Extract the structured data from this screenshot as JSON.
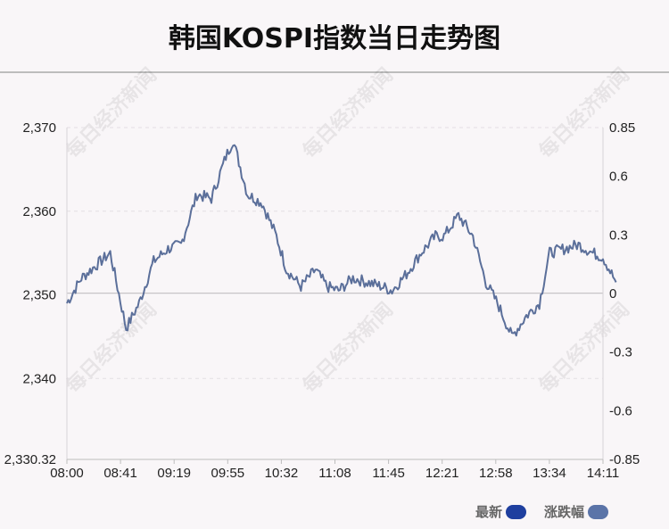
{
  "title": "韩国KOSPI指数当日走势图",
  "legend": [
    {
      "label": "最新",
      "color": "#1f3f9f"
    },
    {
      "label": "涨跌幅",
      "color": "#5b74a8"
    }
  ],
  "watermark": "每日经济新闻",
  "chart_data": {
    "type": "line",
    "title": "韩国KOSPI指数当日走势图",
    "line_color": "#5b6f9a",
    "x_tick_labels": [
      "08:00",
      "08:41",
      "09:19",
      "09:55",
      "10:32",
      "11:08",
      "11:45",
      "12:21",
      "12:58",
      "13:34",
      "14:11"
    ],
    "y_left_tick_labels": [
      "2,370",
      "2,360",
      "2,350",
      "2,340",
      "2,330.32"
    ],
    "y_left_range": [
      2330.32,
      2370.0
    ],
    "y_right_tick_labels": [
      "0.85",
      "0.6",
      "0.3",
      "0",
      "-0.3",
      "-0.6",
      "-0.85"
    ],
    "y_right_range": [
      -0.85,
      0.85
    ],
    "reference_line_value": 2350.2,
    "grid": "horizontal-dashed",
    "x": [
      "08:00",
      "08:10",
      "08:20",
      "08:30",
      "08:41",
      "08:50",
      "09:00",
      "09:10",
      "09:19",
      "09:30",
      "09:40",
      "09:50",
      "09:55",
      "10:05",
      "10:15",
      "10:25",
      "10:32",
      "10:42",
      "10:52",
      "11:00",
      "11:08",
      "11:18",
      "11:28",
      "11:38",
      "11:45",
      "11:55",
      "12:05",
      "12:15",
      "12:21",
      "12:31",
      "12:41",
      "12:50",
      "12:58",
      "13:08",
      "13:18",
      "13:27",
      "13:34",
      "13:44",
      "13:54",
      "14:04",
      "14:11",
      "14:20"
    ],
    "series": [
      {
        "values": [
          2349.0,
          2352.0,
          2353.5,
          2355.0,
          2346.0,
          2349.0,
          2354.0,
          2355.5,
          2356.0,
          2362.0,
          2361.5,
          2366.5,
          2368.5,
          2362.0,
          2361.0,
          2357.0,
          2353.0,
          2351.0,
          2353.0,
          2351.0,
          2350.5,
          2352.0,
          2351.5,
          2351.0,
          2350.5,
          2352.5,
          2355.0,
          2357.0,
          2357.0,
          2359.5,
          2357.0,
          2351.5,
          2349.0,
          2345.0,
          2347.5,
          2349.0,
          2355.0,
          2355.5,
          2356.0,
          2355.0,
          2354.5,
          2351.5
        ]
      }
    ]
  }
}
